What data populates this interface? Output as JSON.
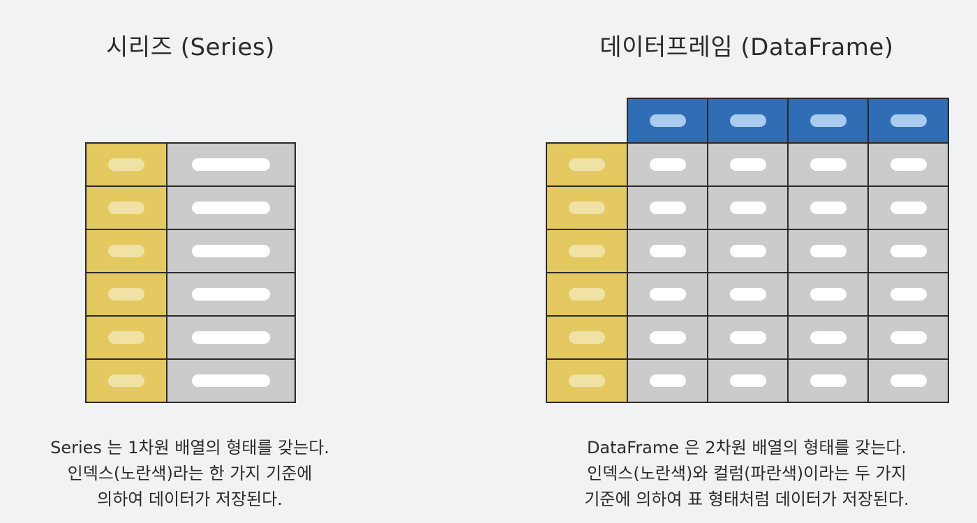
{
  "series_panel": {
    "title": "시리즈 (Series)",
    "rows": 6,
    "caption": [
      "Series 는 1차원 배열의 형태를 갖는다.",
      "인덱스(노란색)라는 한 가지 기준에",
      "의하여 데이터가 저장된다."
    ]
  },
  "dataframe_panel": {
    "title": "데이터프레임 (DataFrame)",
    "rows": 6,
    "columns": 4,
    "caption": [
      "DataFrame 은 2차원 배열의 형태를 갖는다.",
      "인덱스(노란색)와 컬럼(파란색)이라는 두 가지",
      "기준에 의하여 표 형태처럼 데이터가 저장된다."
    ]
  },
  "colors": {
    "index": "#e3c95f",
    "value": "#cbcbcb",
    "column": "#2f6db4",
    "border": "#2a2a2a"
  }
}
